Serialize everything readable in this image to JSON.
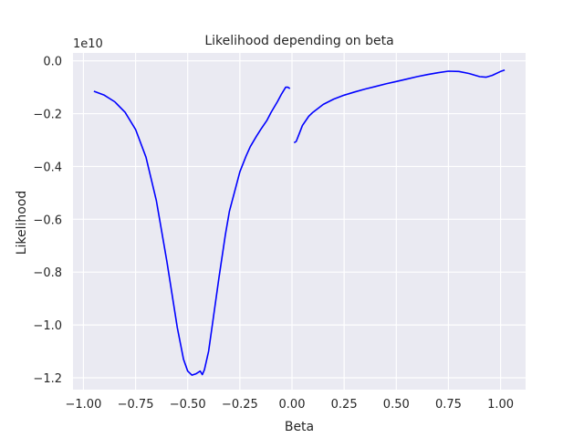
{
  "chart_data": {
    "type": "line",
    "title": "Likelihood depending on beta",
    "xlabel": "Beta",
    "ylabel": "Likelihood",
    "offset_label": "1e10",
    "xlim": [
      -1.05,
      1.12
    ],
    "ylim": [
      -1.245,
      0.03
    ],
    "xticks": [
      -1.0,
      -0.75,
      -0.5,
      -0.25,
      0.0,
      0.25,
      0.5,
      0.75,
      1.0
    ],
    "xtick_labels": [
      "−1.00",
      "−0.75",
      "−0.50",
      "−0.25",
      "0.00",
      "0.25",
      "0.50",
      "0.75",
      "1.00"
    ],
    "yticks": [
      0.0,
      -0.2,
      -0.4,
      -0.6,
      -0.8,
      -1.0,
      -1.2
    ],
    "ytick_labels": [
      "0.0",
      "−0.2",
      "−0.4",
      "−0.6",
      "−0.8",
      "−1.0",
      "−1.2"
    ],
    "grid": true,
    "colors": {
      "background": "#eaeaf2",
      "grid": "#ffffff",
      "line": "#0000ff",
      "text": "#262626"
    },
    "series": [
      {
        "segment": "negative-beta",
        "x": [
          -0.95,
          -0.9,
          -0.85,
          -0.8,
          -0.75,
          -0.7,
          -0.65,
          -0.6,
          -0.55,
          -0.52,
          -0.5,
          -0.48,
          -0.46,
          -0.44,
          -0.43,
          -0.42,
          -0.4,
          -0.38,
          -0.35,
          -0.32,
          -0.3,
          -0.27,
          -0.25,
          -0.22,
          -0.2,
          -0.17,
          -0.15,
          -0.12,
          -0.1,
          -0.07,
          -0.05,
          -0.03,
          -0.02,
          -0.01
        ],
        "y": [
          -0.115,
          -0.13,
          -0.155,
          -0.195,
          -0.26,
          -0.365,
          -0.53,
          -0.76,
          -1.01,
          -1.13,
          -1.175,
          -1.19,
          -1.185,
          -1.175,
          -1.188,
          -1.17,
          -1.1,
          -0.99,
          -0.82,
          -0.66,
          -0.57,
          -0.48,
          -0.42,
          -0.36,
          -0.325,
          -0.285,
          -0.26,
          -0.225,
          -0.195,
          -0.155,
          -0.125,
          -0.1,
          -0.1,
          -0.105
        ]
      },
      {
        "segment": "positive-beta",
        "x": [
          0.01,
          0.02,
          0.03,
          0.05,
          0.08,
          0.1,
          0.15,
          0.2,
          0.25,
          0.3,
          0.35,
          0.4,
          0.45,
          0.5,
          0.55,
          0.6,
          0.65,
          0.7,
          0.75,
          0.8,
          0.85,
          0.9,
          0.93,
          0.96,
          1.0,
          1.02
        ],
        "y": [
          -0.31,
          -0.305,
          -0.285,
          -0.245,
          -0.21,
          -0.195,
          -0.165,
          -0.145,
          -0.13,
          -0.118,
          -0.107,
          -0.097,
          -0.087,
          -0.078,
          -0.069,
          -0.06,
          -0.052,
          -0.045,
          -0.039,
          -0.04,
          -0.048,
          -0.06,
          -0.062,
          -0.055,
          -0.04,
          -0.035
        ]
      }
    ]
  }
}
